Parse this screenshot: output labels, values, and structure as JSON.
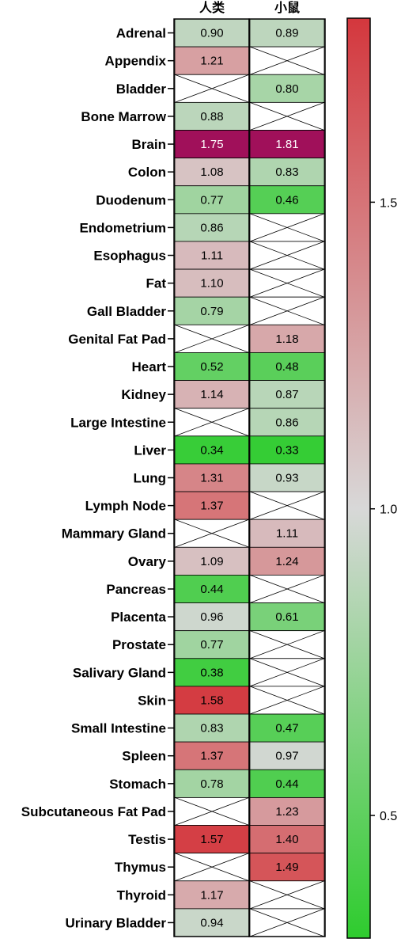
{
  "chart_data": {
    "type": "heatmap",
    "columns": [
      "人类",
      "小鼠"
    ],
    "rows": [
      "Adrenal",
      "Appendix",
      "Bladder",
      "Bone Marrow",
      "Brain",
      "Colon",
      "Duodenum",
      "Endometrium",
      "Esophagus",
      "Fat",
      "Gall Bladder",
      "Genital Fat Pad",
      "Heart",
      "Kidney",
      "Large Intestine",
      "Liver",
      "Lung",
      "Lymph Node",
      "Mammary Gland",
      "Ovary",
      "Pancreas",
      "Placenta",
      "Prostate",
      "Salivary Gland",
      "Skin",
      "Small Intestine",
      "Spleen",
      "Stomach",
      "Subcutaneous Fat Pad",
      "Testis",
      "Thymus",
      "Thyroid",
      "Urinary Bladder"
    ],
    "values": [
      [
        "0.90",
        "0.89"
      ],
      [
        "1.21",
        null
      ],
      [
        null,
        "0.80"
      ],
      [
        "0.88",
        null
      ],
      [
        "1.75",
        "1.81"
      ],
      [
        "1.08",
        "0.83"
      ],
      [
        "0.77",
        "0.46"
      ],
      [
        "0.86",
        null
      ],
      [
        "1.11",
        null
      ],
      [
        "1.10",
        null
      ],
      [
        "0.79",
        null
      ],
      [
        null,
        "1.18"
      ],
      [
        "0.52",
        "0.48"
      ],
      [
        "1.14",
        "0.87"
      ],
      [
        null,
        "0.86"
      ],
      [
        "0.34",
        "0.33"
      ],
      [
        "1.31",
        "0.93"
      ],
      [
        "1.37",
        null
      ],
      [
        null,
        "1.11"
      ],
      [
        "1.09",
        "1.24"
      ],
      [
        "0.44",
        null
      ],
      [
        "0.96",
        "0.61"
      ],
      [
        "0.77",
        null
      ],
      [
        "0.38",
        null
      ],
      [
        "1.58",
        null
      ],
      [
        "0.83",
        "0.47"
      ],
      [
        "1.37",
        "0.97"
      ],
      [
        "0.78",
        "0.44"
      ],
      [
        null,
        "1.23"
      ],
      [
        "1.57",
        "1.40"
      ],
      [
        null,
        "1.49"
      ],
      [
        "1.17",
        null
      ],
      [
        "0.94",
        null
      ]
    ],
    "colorbar": {
      "min": 0.3,
      "max": 1.8,
      "ticks": [
        1.5,
        1.0,
        0.5
      ],
      "tick_labels": [
        "1.5",
        "1.0",
        "0.5"
      ]
    },
    "colors": {
      "low": "#2ecc2e",
      "mid": "#d8d8d8",
      "high": "#d4373d",
      "saturated": "#a0105a"
    }
  }
}
